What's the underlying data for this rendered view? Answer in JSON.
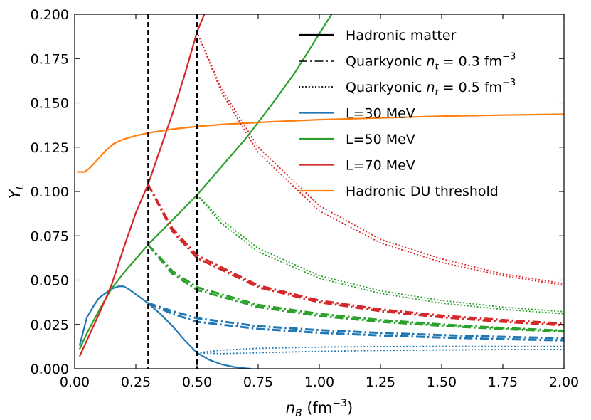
{
  "chart_data": {
    "type": "line",
    "title": "",
    "xlabel": "n_B (fm^-3)",
    "ylabel": "Y_L",
    "xlim": [
      0.0,
      2.0
    ],
    "ylim": [
      0.0,
      0.2
    ],
    "x_ticks": [
      "0.00",
      "0.25",
      "0.50",
      "0.75",
      "1.00",
      "1.25",
      "1.50",
      "1.75",
      "2.00"
    ],
    "y_ticks": [
      "0.000",
      "0.025",
      "0.050",
      "0.075",
      "0.100",
      "0.125",
      "0.150",
      "0.175",
      "0.200"
    ],
    "vertical_lines": [
      0.3,
      0.5
    ],
    "legend_location": "top-right",
    "legend": [
      {
        "label": "Hadronic matter",
        "style": "solid",
        "color": "#000000"
      },
      {
        "label": "Quarkyonic n_t = 0.3 fm^-3",
        "style": "dashdot",
        "color": "#000000"
      },
      {
        "label": "Quarkyonic n_t = 0.5 fm^-3",
        "style": "dotted",
        "color": "#000000"
      },
      {
        "label": "L=30 MeV",
        "style": "solid",
        "color": "#1f77b4"
      },
      {
        "label": "L=50 MeV",
        "style": "solid",
        "color": "#2ca02c"
      },
      {
        "label": "L=70 MeV",
        "style": "solid",
        "color": "#d62728"
      },
      {
        "label": "Hadronic DU threshold",
        "style": "solid",
        "color": "#ff7f0e"
      }
    ],
    "series": [
      {
        "name": "L=30 MeV hadronic",
        "color": "#1f77b4",
        "style": "solid",
        "x": [
          0.02,
          0.05,
          0.08,
          0.1,
          0.13,
          0.15,
          0.18,
          0.2,
          0.22,
          0.25,
          0.3,
          0.35,
          0.4,
          0.45,
          0.5,
          0.55,
          0.6,
          0.65,
          0.7,
          0.72
        ],
        "y": [
          0.013,
          0.029,
          0.036,
          0.04,
          0.043,
          0.045,
          0.0465,
          0.0465,
          0.045,
          0.042,
          0.037,
          0.031,
          0.024,
          0.016,
          0.009,
          0.005,
          0.0025,
          0.001,
          0.0002,
          0.0
        ]
      },
      {
        "name": "L=50 MeV hadronic",
        "color": "#2ca02c",
        "style": "solid",
        "x": [
          0.02,
          0.05,
          0.1,
          0.15,
          0.2,
          0.25,
          0.3,
          0.4,
          0.5,
          0.6,
          0.7,
          0.8,
          0.9,
          1.0,
          1.05
        ],
        "y": [
          0.011,
          0.02,
          0.033,
          0.045,
          0.054,
          0.062,
          0.07,
          0.084,
          0.098,
          0.114,
          0.13,
          0.148,
          0.167,
          0.189,
          0.2
        ]
      },
      {
        "name": "L=70 MeV hadronic",
        "color": "#d62728",
        "style": "solid",
        "x": [
          0.02,
          0.05,
          0.1,
          0.15,
          0.2,
          0.25,
          0.3,
          0.35,
          0.4,
          0.45,
          0.5,
          0.53
        ],
        "y": [
          0.007,
          0.016,
          0.031,
          0.047,
          0.068,
          0.088,
          0.104,
          0.124,
          0.144,
          0.166,
          0.19,
          0.2
        ]
      },
      {
        "name": "Hadronic DU threshold",
        "color": "#ff7f0e",
        "style": "solid",
        "x": [
          0.01,
          0.04,
          0.06,
          0.08,
          0.1,
          0.13,
          0.16,
          0.2,
          0.25,
          0.3,
          0.4,
          0.5,
          0.6,
          0.8,
          1.0,
          1.25,
          1.5,
          1.75,
          2.0
        ],
        "y": [
          0.111,
          0.111,
          0.113,
          0.116,
          0.119,
          0.1235,
          0.127,
          0.1295,
          0.1315,
          0.133,
          0.1352,
          0.1367,
          0.1378,
          0.1393,
          0.1405,
          0.1415,
          0.1425,
          0.1431,
          0.1436
        ]
      },
      {
        "name": "L=30 MeV n_t=0.3 (a)",
        "color": "#1f77b4",
        "style": "dashdot",
        "x": [
          0.3,
          0.4,
          0.5,
          0.75,
          1.0,
          1.25,
          1.5,
          1.75,
          2.0
        ],
        "y": [
          0.037,
          0.0325,
          0.0285,
          0.024,
          0.0218,
          0.0202,
          0.019,
          0.018,
          0.0172
        ]
      },
      {
        "name": "L=30 MeV n_t=0.3 (b)",
        "color": "#1f77b4",
        "style": "dashdot",
        "x": [
          0.3,
          0.4,
          0.5,
          0.75,
          1.0,
          1.25,
          1.5,
          1.75,
          2.0
        ],
        "y": [
          0.037,
          0.031,
          0.0265,
          0.0225,
          0.0203,
          0.0188,
          0.0176,
          0.0167,
          0.016
        ]
      },
      {
        "name": "L=50 MeV n_t=0.3 (a)",
        "color": "#2ca02c",
        "style": "dashdot",
        "x": [
          0.3,
          0.4,
          0.5,
          0.75,
          1.0,
          1.25,
          1.5,
          1.75,
          2.0
        ],
        "y": [
          0.07,
          0.055,
          0.046,
          0.036,
          0.031,
          0.0275,
          0.025,
          0.023,
          0.0215
        ]
      },
      {
        "name": "L=50 MeV n_t=0.3 (b)",
        "color": "#2ca02c",
        "style": "dashdot",
        "x": [
          0.3,
          0.4,
          0.5,
          0.75,
          1.0,
          1.25,
          1.5,
          1.75,
          2.0
        ],
        "y": [
          0.07,
          0.0535,
          0.0445,
          0.0348,
          0.0298,
          0.0265,
          0.0242,
          0.0224,
          0.021
        ]
      },
      {
        "name": "L=70 MeV n_t=0.3 (a)",
        "color": "#d62728",
        "style": "dashdot",
        "x": [
          0.3,
          0.4,
          0.5,
          0.75,
          1.0,
          1.25,
          1.5,
          1.75,
          2.0
        ],
        "y": [
          0.104,
          0.079,
          0.064,
          0.047,
          0.0385,
          0.0335,
          0.03,
          0.0275,
          0.0255
        ]
      },
      {
        "name": "L=70 MeV n_t=0.3 (b)",
        "color": "#d62728",
        "style": "dashdot",
        "x": [
          0.3,
          0.4,
          0.5,
          0.75,
          1.0,
          1.25,
          1.5,
          1.75,
          2.0
        ],
        "y": [
          0.104,
          0.0775,
          0.0625,
          0.046,
          0.0375,
          0.0325,
          0.029,
          0.0265,
          0.0245
        ]
      },
      {
        "name": "L=30 MeV n_t=0.5 (a)",
        "color": "#1f77b4",
        "style": "dotted",
        "x": [
          0.5,
          0.6,
          0.75,
          1.0,
          1.25,
          1.5,
          1.75,
          2.0
        ],
        "y": [
          0.009,
          0.0105,
          0.0115,
          0.0122,
          0.0125,
          0.0126,
          0.0126,
          0.0126
        ]
      },
      {
        "name": "L=30 MeV n_t=0.5 (b)",
        "color": "#1f77b4",
        "style": "dotted",
        "x": [
          0.5,
          0.6,
          0.75,
          1.0,
          1.25,
          1.5,
          1.75,
          2.0
        ],
        "y": [
          0.009,
          0.0085,
          0.009,
          0.0098,
          0.0103,
          0.0106,
          0.0108,
          0.0109
        ]
      },
      {
        "name": "L=50 MeV n_t=0.5 (a)",
        "color": "#2ca02c",
        "style": "dotted",
        "x": [
          0.5,
          0.6,
          0.75,
          1.0,
          1.25,
          1.5,
          1.75,
          2.0
        ],
        "y": [
          0.098,
          0.082,
          0.066,
          0.051,
          0.0425,
          0.037,
          0.0335,
          0.031
        ]
      },
      {
        "name": "L=50 MeV n_t=0.5 (b)",
        "color": "#2ca02c",
        "style": "dotted",
        "x": [
          0.5,
          0.6,
          0.75,
          1.0,
          1.25,
          1.5,
          1.75,
          2.0
        ],
        "y": [
          0.098,
          0.084,
          0.068,
          0.0525,
          0.044,
          0.0385,
          0.0348,
          0.0322
        ]
      },
      {
        "name": "L=70 MeV n_t=0.5 (a)",
        "color": "#d62728",
        "style": "dotted",
        "x": [
          0.5,
          0.6,
          0.75,
          1.0,
          1.25,
          1.5,
          1.75,
          2.0
        ],
        "y": [
          0.19,
          0.156,
          0.122,
          0.089,
          0.071,
          0.06,
          0.0525,
          0.047
        ]
      },
      {
        "name": "L=70 MeV n_t=0.5 (b)",
        "color": "#d62728",
        "style": "dotted",
        "x": [
          0.5,
          0.6,
          0.75,
          1.0,
          1.25,
          1.5,
          1.75,
          2.0
        ],
        "y": [
          0.19,
          0.158,
          0.125,
          0.092,
          0.073,
          0.062,
          0.0535,
          0.048
        ]
      }
    ]
  }
}
